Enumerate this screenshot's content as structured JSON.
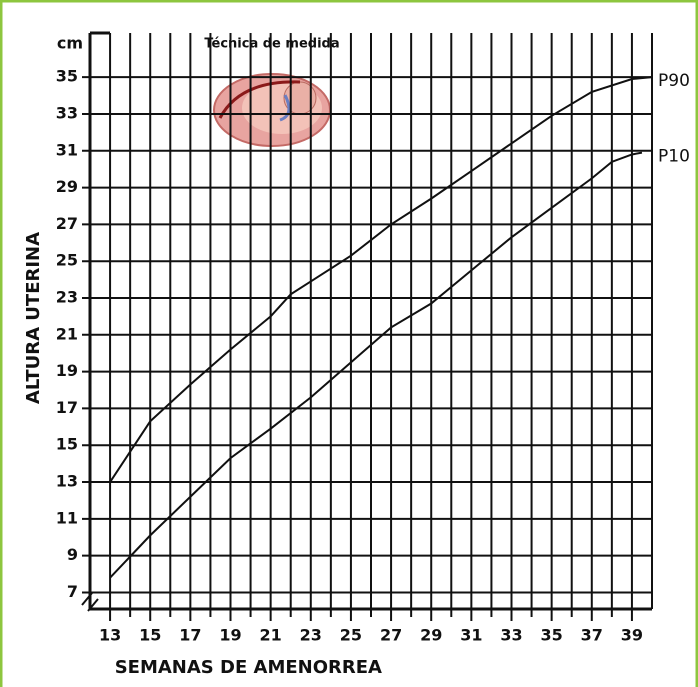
{
  "chart_data": {
    "type": "line",
    "title": "Técnica de medida",
    "y_unit": "cm",
    "x_label": "SEMANAS DE AMENORREA",
    "y_label": "ALTURA UTERINA",
    "xlim": [
      12,
      40
    ],
    "ylim": [
      6.1,
      37.4
    ],
    "xticks": [
      13,
      15,
      17,
      19,
      21,
      23,
      25,
      27,
      29,
      31,
      33,
      35,
      37,
      39
    ],
    "yticks": [
      7,
      9,
      11,
      13,
      15,
      17,
      19,
      21,
      23,
      25,
      27,
      29,
      31,
      33,
      35
    ],
    "grid": true,
    "series": [
      {
        "name": "P90",
        "color": "#111111",
        "x": [
          13,
          15,
          17,
          19,
          21,
          22,
          23,
          25,
          27,
          29,
          31,
          33,
          35,
          37,
          39,
          40
        ],
        "values": [
          13,
          16.3,
          18.3,
          20.2,
          22,
          23.2,
          23.9,
          25.3,
          27,
          28.4,
          29.9,
          31.4,
          32.9,
          34.2,
          34.9,
          35
        ]
      },
      {
        "name": "P10",
        "color": "#111111",
        "x": [
          13,
          15,
          17,
          19,
          21,
          23,
          25,
          27,
          29,
          31,
          33,
          35,
          37,
          38,
          39,
          39.5
        ],
        "values": [
          7.8,
          10.1,
          12.2,
          14.3,
          15.9,
          17.6,
          19.5,
          21.4,
          22.7,
          24.5,
          26.3,
          27.9,
          29.5,
          30.4,
          30.8,
          30.9
        ]
      }
    ]
  }
}
